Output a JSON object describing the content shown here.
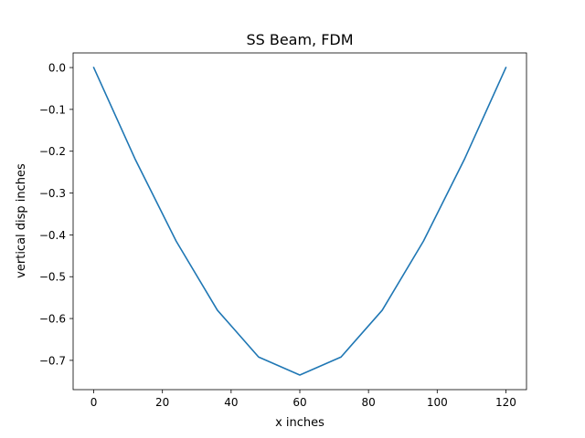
{
  "chart_data": {
    "type": "line",
    "title": "SS Beam, FDM",
    "xlabel": "x inches",
    "ylabel": "vertical disp inches",
    "xlim": [
      -6,
      126
    ],
    "ylim": [
      -0.77,
      0.035
    ],
    "xticks": [
      0,
      20,
      40,
      60,
      80,
      100,
      120
    ],
    "yticks": [
      0.0,
      -0.1,
      -0.2,
      -0.3,
      -0.4,
      -0.5,
      -0.6,
      -0.7
    ],
    "xtick_labels": [
      "0",
      "20",
      "40",
      "60",
      "80",
      "100",
      "120"
    ],
    "ytick_labels": [
      "0.0",
      "−0.1",
      "−0.2",
      "−0.3",
      "−0.4",
      "−0.5",
      "−0.6",
      "−0.7"
    ],
    "grid": false,
    "series": [
      {
        "color": "#1f77b4",
        "x": [
          0,
          12,
          24,
          36,
          48,
          60,
          72,
          84,
          96,
          108,
          120
        ],
        "y": [
          0.0,
          -0.218,
          -0.415,
          -0.58,
          -0.692,
          -0.735,
          -0.692,
          -0.58,
          -0.415,
          -0.218,
          0.0
        ]
      }
    ]
  }
}
